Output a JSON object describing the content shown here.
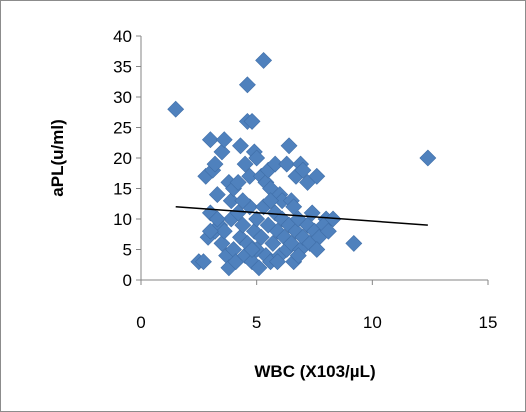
{
  "chart_data": {
    "type": "scatter",
    "title": "",
    "xlabel": "WBC (X103/µL)",
    "ylabel": "aPL(u/ml)",
    "xlim": [
      0,
      15
    ],
    "ylim": [
      0,
      40
    ],
    "x_ticks": [
      "0",
      "5",
      "10",
      "15"
    ],
    "y_ticks": [
      "0",
      "5",
      "10",
      "15",
      "20",
      "25",
      "30",
      "35",
      "40"
    ],
    "grid": false,
    "legend": "none",
    "marker_color": "#4f81bd",
    "trendline_color": "#000000",
    "trendline": {
      "x": [
        1.5,
        12.4
      ],
      "y": [
        12,
        9
      ]
    },
    "points": [
      [
        1.5,
        28
      ],
      [
        2.5,
        3
      ],
      [
        2.7,
        3
      ],
      [
        2.8,
        17
      ],
      [
        3.0,
        23
      ],
      [
        3.0,
        11
      ],
      [
        3.1,
        18
      ],
      [
        3.2,
        19
      ],
      [
        3.3,
        14
      ],
      [
        3.5,
        21
      ],
      [
        3.6,
        23
      ],
      [
        3.8,
        16
      ],
      [
        3.9,
        13
      ],
      [
        4.0,
        15
      ],
      [
        4.2,
        16
      ],
      [
        4.3,
        22
      ],
      [
        4.5,
        19
      ],
      [
        4.6,
        26
      ],
      [
        4.6,
        32
      ],
      [
        4.7,
        17
      ],
      [
        4.8,
        26
      ],
      [
        4.9,
        21
      ],
      [
        5.0,
        20
      ],
      [
        5.2,
        17
      ],
      [
        5.3,
        36
      ],
      [
        5.4,
        16
      ],
      [
        5.5,
        18
      ],
      [
        5.6,
        15
      ],
      [
        5.8,
        19
      ],
      [
        6.0,
        14
      ],
      [
        6.1,
        13
      ],
      [
        6.3,
        19
      ],
      [
        6.4,
        22
      ],
      [
        6.5,
        13
      ],
      [
        6.7,
        17
      ],
      [
        6.9,
        19
      ],
      [
        7.0,
        18
      ],
      [
        7.2,
        16
      ],
      [
        7.4,
        11
      ],
      [
        7.6,
        17
      ],
      [
        8.0,
        10
      ],
      [
        9.2,
        6
      ],
      [
        12.4,
        20
      ],
      [
        2.9,
        7
      ],
      [
        3.2,
        8
      ],
      [
        3.4,
        9
      ],
      [
        3.5,
        6
      ],
      [
        3.6,
        8
      ],
      [
        3.7,
        4
      ],
      [
        3.8,
        2
      ],
      [
        3.9,
        10
      ],
      [
        4.0,
        5
      ],
      [
        4.1,
        3
      ],
      [
        4.2,
        11
      ],
      [
        4.3,
        7
      ],
      [
        4.4,
        9
      ],
      [
        4.5,
        4
      ],
      [
        4.6,
        6
      ],
      [
        4.7,
        12
      ],
      [
        4.8,
        3
      ],
      [
        4.9,
        8
      ],
      [
        5.0,
        5
      ],
      [
        5.0,
        10
      ],
      [
        5.1,
        2
      ],
      [
        5.2,
        7
      ],
      [
        5.3,
        12
      ],
      [
        5.4,
        4
      ],
      [
        5.5,
        9
      ],
      [
        5.6,
        3
      ],
      [
        5.7,
        6
      ],
      [
        5.8,
        11
      ],
      [
        5.9,
        8
      ],
      [
        6.0,
        4
      ],
      [
        6.1,
        10
      ],
      [
        6.2,
        7
      ],
      [
        6.3,
        5
      ],
      [
        6.4,
        9
      ],
      [
        6.5,
        6
      ],
      [
        6.6,
        3
      ],
      [
        6.7,
        8
      ],
      [
        6.8,
        10
      ],
      [
        6.9,
        5
      ],
      [
        7.0,
        7
      ],
      [
        7.2,
        9
      ],
      [
        7.3,
        6
      ],
      [
        7.5,
        8
      ],
      [
        7.7,
        7
      ],
      [
        7.9,
        9
      ],
      [
        8.1,
        8
      ],
      [
        8.3,
        10
      ],
      [
        7.6,
        5
      ],
      [
        6.6,
        12
      ],
      [
        5.6,
        13
      ],
      [
        4.4,
        13
      ],
      [
        3.3,
        10
      ],
      [
        3.0,
        8
      ],
      [
        6.8,
        4
      ],
      [
        5.9,
        3
      ],
      [
        4.8,
        5
      ]
    ]
  }
}
